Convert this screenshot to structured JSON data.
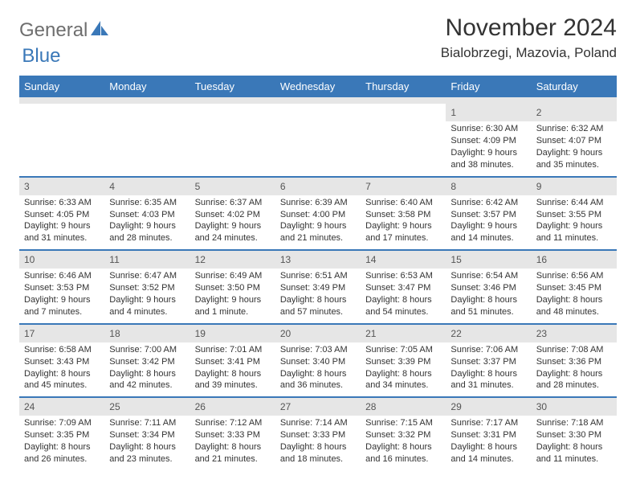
{
  "logo": {
    "text1": "General",
    "text2": "Blue",
    "shape_color": "#3a78b8",
    "text1_color": "#6e6e6e"
  },
  "title": "November 2024",
  "location": "Bialobrzegi, Mazovia, Poland",
  "colors": {
    "header_bar": "#3a78b8",
    "daynum_bg": "#e6e6e6",
    "text": "#333333",
    "row_divider": "#3a78b8"
  },
  "day_headers": [
    "Sunday",
    "Monday",
    "Tuesday",
    "Wednesday",
    "Thursday",
    "Friday",
    "Saturday"
  ],
  "weeks": [
    [
      null,
      null,
      null,
      null,
      null,
      {
        "num": "1",
        "sunrise": "Sunrise: 6:30 AM",
        "sunset": "Sunset: 4:09 PM",
        "daylight1": "Daylight: 9 hours",
        "daylight2": "and 38 minutes."
      },
      {
        "num": "2",
        "sunrise": "Sunrise: 6:32 AM",
        "sunset": "Sunset: 4:07 PM",
        "daylight1": "Daylight: 9 hours",
        "daylight2": "and 35 minutes."
      }
    ],
    [
      {
        "num": "3",
        "sunrise": "Sunrise: 6:33 AM",
        "sunset": "Sunset: 4:05 PM",
        "daylight1": "Daylight: 9 hours",
        "daylight2": "and 31 minutes."
      },
      {
        "num": "4",
        "sunrise": "Sunrise: 6:35 AM",
        "sunset": "Sunset: 4:03 PM",
        "daylight1": "Daylight: 9 hours",
        "daylight2": "and 28 minutes."
      },
      {
        "num": "5",
        "sunrise": "Sunrise: 6:37 AM",
        "sunset": "Sunset: 4:02 PM",
        "daylight1": "Daylight: 9 hours",
        "daylight2": "and 24 minutes."
      },
      {
        "num": "6",
        "sunrise": "Sunrise: 6:39 AM",
        "sunset": "Sunset: 4:00 PM",
        "daylight1": "Daylight: 9 hours",
        "daylight2": "and 21 minutes."
      },
      {
        "num": "7",
        "sunrise": "Sunrise: 6:40 AM",
        "sunset": "Sunset: 3:58 PM",
        "daylight1": "Daylight: 9 hours",
        "daylight2": "and 17 minutes."
      },
      {
        "num": "8",
        "sunrise": "Sunrise: 6:42 AM",
        "sunset": "Sunset: 3:57 PM",
        "daylight1": "Daylight: 9 hours",
        "daylight2": "and 14 minutes."
      },
      {
        "num": "9",
        "sunrise": "Sunrise: 6:44 AM",
        "sunset": "Sunset: 3:55 PM",
        "daylight1": "Daylight: 9 hours",
        "daylight2": "and 11 minutes."
      }
    ],
    [
      {
        "num": "10",
        "sunrise": "Sunrise: 6:46 AM",
        "sunset": "Sunset: 3:53 PM",
        "daylight1": "Daylight: 9 hours",
        "daylight2": "and 7 minutes."
      },
      {
        "num": "11",
        "sunrise": "Sunrise: 6:47 AM",
        "sunset": "Sunset: 3:52 PM",
        "daylight1": "Daylight: 9 hours",
        "daylight2": "and 4 minutes."
      },
      {
        "num": "12",
        "sunrise": "Sunrise: 6:49 AM",
        "sunset": "Sunset: 3:50 PM",
        "daylight1": "Daylight: 9 hours",
        "daylight2": "and 1 minute."
      },
      {
        "num": "13",
        "sunrise": "Sunrise: 6:51 AM",
        "sunset": "Sunset: 3:49 PM",
        "daylight1": "Daylight: 8 hours",
        "daylight2": "and 57 minutes."
      },
      {
        "num": "14",
        "sunrise": "Sunrise: 6:53 AM",
        "sunset": "Sunset: 3:47 PM",
        "daylight1": "Daylight: 8 hours",
        "daylight2": "and 54 minutes."
      },
      {
        "num": "15",
        "sunrise": "Sunrise: 6:54 AM",
        "sunset": "Sunset: 3:46 PM",
        "daylight1": "Daylight: 8 hours",
        "daylight2": "and 51 minutes."
      },
      {
        "num": "16",
        "sunrise": "Sunrise: 6:56 AM",
        "sunset": "Sunset: 3:45 PM",
        "daylight1": "Daylight: 8 hours",
        "daylight2": "and 48 minutes."
      }
    ],
    [
      {
        "num": "17",
        "sunrise": "Sunrise: 6:58 AM",
        "sunset": "Sunset: 3:43 PM",
        "daylight1": "Daylight: 8 hours",
        "daylight2": "and 45 minutes."
      },
      {
        "num": "18",
        "sunrise": "Sunrise: 7:00 AM",
        "sunset": "Sunset: 3:42 PM",
        "daylight1": "Daylight: 8 hours",
        "daylight2": "and 42 minutes."
      },
      {
        "num": "19",
        "sunrise": "Sunrise: 7:01 AM",
        "sunset": "Sunset: 3:41 PM",
        "daylight1": "Daylight: 8 hours",
        "daylight2": "and 39 minutes."
      },
      {
        "num": "20",
        "sunrise": "Sunrise: 7:03 AM",
        "sunset": "Sunset: 3:40 PM",
        "daylight1": "Daylight: 8 hours",
        "daylight2": "and 36 minutes."
      },
      {
        "num": "21",
        "sunrise": "Sunrise: 7:05 AM",
        "sunset": "Sunset: 3:39 PM",
        "daylight1": "Daylight: 8 hours",
        "daylight2": "and 34 minutes."
      },
      {
        "num": "22",
        "sunrise": "Sunrise: 7:06 AM",
        "sunset": "Sunset: 3:37 PM",
        "daylight1": "Daylight: 8 hours",
        "daylight2": "and 31 minutes."
      },
      {
        "num": "23",
        "sunrise": "Sunrise: 7:08 AM",
        "sunset": "Sunset: 3:36 PM",
        "daylight1": "Daylight: 8 hours",
        "daylight2": "and 28 minutes."
      }
    ],
    [
      {
        "num": "24",
        "sunrise": "Sunrise: 7:09 AM",
        "sunset": "Sunset: 3:35 PM",
        "daylight1": "Daylight: 8 hours",
        "daylight2": "and 26 minutes."
      },
      {
        "num": "25",
        "sunrise": "Sunrise: 7:11 AM",
        "sunset": "Sunset: 3:34 PM",
        "daylight1": "Daylight: 8 hours",
        "daylight2": "and 23 minutes."
      },
      {
        "num": "26",
        "sunrise": "Sunrise: 7:12 AM",
        "sunset": "Sunset: 3:33 PM",
        "daylight1": "Daylight: 8 hours",
        "daylight2": "and 21 minutes."
      },
      {
        "num": "27",
        "sunrise": "Sunrise: 7:14 AM",
        "sunset": "Sunset: 3:33 PM",
        "daylight1": "Daylight: 8 hours",
        "daylight2": "and 18 minutes."
      },
      {
        "num": "28",
        "sunrise": "Sunrise: 7:15 AM",
        "sunset": "Sunset: 3:32 PM",
        "daylight1": "Daylight: 8 hours",
        "daylight2": "and 16 minutes."
      },
      {
        "num": "29",
        "sunrise": "Sunrise: 7:17 AM",
        "sunset": "Sunset: 3:31 PM",
        "daylight1": "Daylight: 8 hours",
        "daylight2": "and 14 minutes."
      },
      {
        "num": "30",
        "sunrise": "Sunrise: 7:18 AM",
        "sunset": "Sunset: 3:30 PM",
        "daylight1": "Daylight: 8 hours",
        "daylight2": "and 11 minutes."
      }
    ]
  ]
}
